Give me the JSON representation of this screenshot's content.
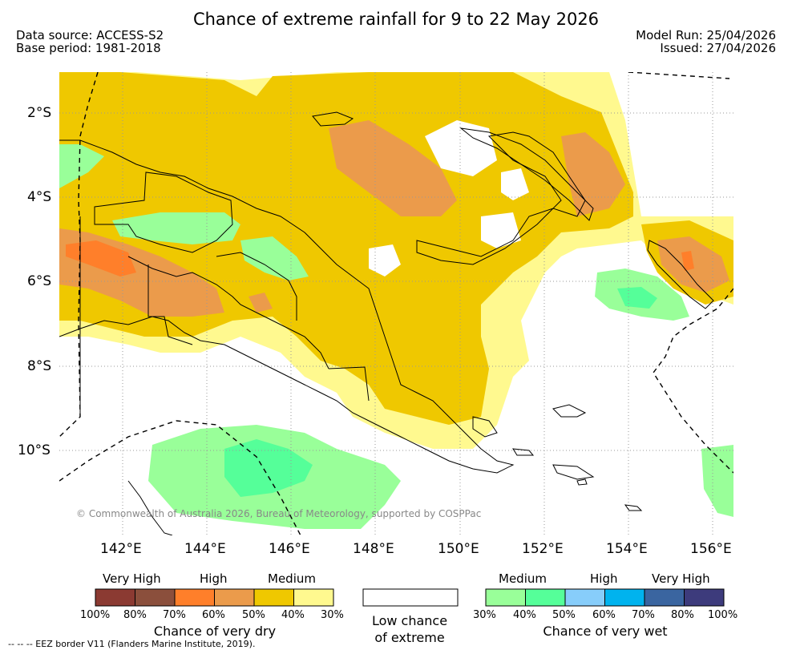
{
  "title": "Chance of extreme rainfall for 9 to 22 May 2026",
  "data_source": "Data source: ACCESS-S2",
  "base_period": "Base period: 1981-2018",
  "model_run": "Model Run: 25/04/2026",
  "issued": "Issued: 27/04/2026",
  "lat_ticks": [
    "2°S",
    "4°S",
    "6°S",
    "8°S",
    "10°S"
  ],
  "lon_ticks": [
    "142°E",
    "144°E",
    "146°E",
    "148°E",
    "150°E",
    "152°E",
    "154°E",
    "156°E"
  ],
  "copyright": "© Commonwealth of Australia 2026, Bureau of Meteorology, supported by COSPPac",
  "colors": {
    "dry": [
      "#8b3a32",
      "#8b4f3c",
      "#ff7f2a",
      "#eb9b4b",
      "#efc800",
      "#fff98f"
    ],
    "wet": [
      "#99ff99",
      "#55ff99",
      "#87cdfa",
      "#00b3ee",
      "#3a65a0",
      "#3d3b7c"
    ],
    "land_line": "#000000",
    "grid": "#999999"
  },
  "legend": {
    "dry_categories": [
      "Very High",
      "High",
      "Medium"
    ],
    "dry_percents": [
      "100%",
      "80%",
      "70%",
      "60%",
      "50%",
      "40%",
      "30%"
    ],
    "dry_caption": "Chance of very dry",
    "low_caption_line1": "Low chance",
    "low_caption_line2": "of extreme",
    "wet_categories": [
      "Medium",
      "High",
      "Very High"
    ],
    "wet_percents": [
      "30%",
      "40%",
      "50%",
      "60%",
      "70%",
      "80%",
      "100%"
    ],
    "wet_caption": "Chance of very wet"
  },
  "eez_note": "--  --  -- EEZ border V11 (Flanders Marine Institute, 2019)."
}
